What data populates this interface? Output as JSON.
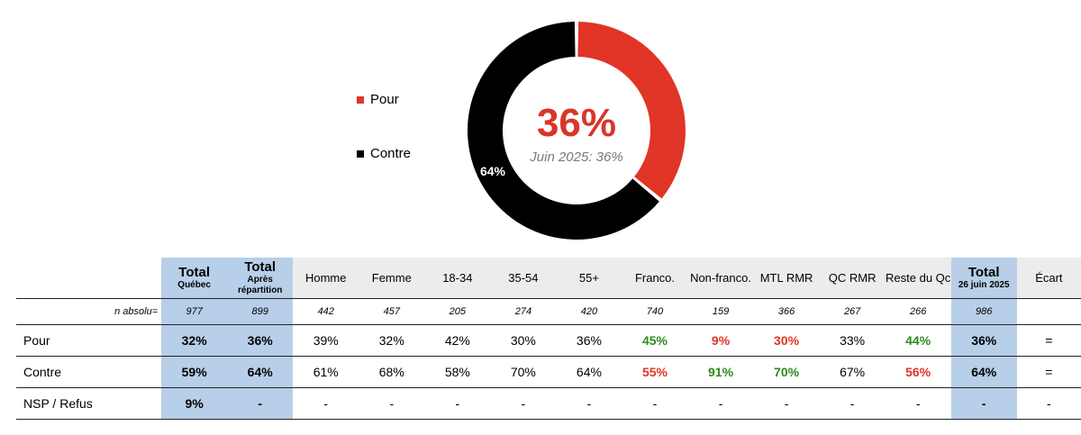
{
  "chart_data": {
    "type": "pie",
    "labels": [
      "Pour",
      "Contre"
    ],
    "values": [
      36,
      64
    ],
    "colors": [
      "#e03527",
      "#000000"
    ],
    "center_value": "36%",
    "center_subtitle": "Juin 2025: 36%",
    "slice_label_contre": "64%",
    "legend_position": "left"
  },
  "legend": {
    "pour": "Pour",
    "contre": "Contre"
  },
  "table": {
    "n_label": "n absolu=",
    "columns": [
      {
        "title": "Total",
        "sub": "Québec",
        "style": "total"
      },
      {
        "title": "Total",
        "sub": "Après répartition",
        "style": "total"
      },
      {
        "title": "Homme",
        "style": "plain"
      },
      {
        "title": "Femme",
        "style": "plain"
      },
      {
        "title": "18-34",
        "style": "plain"
      },
      {
        "title": "35-54",
        "style": "plain"
      },
      {
        "title": "55+",
        "style": "plain"
      },
      {
        "title": "Franco.",
        "style": "plain"
      },
      {
        "title": "Non-franco.",
        "style": "plain"
      },
      {
        "title": "MTL RMR",
        "style": "plain"
      },
      {
        "title": "QC RMR",
        "style": "plain"
      },
      {
        "title": "Reste du Qc",
        "style": "plain"
      },
      {
        "title": "Total",
        "sub": "26 juin 2025",
        "style": "total"
      },
      {
        "title": "Écart",
        "style": "plain"
      }
    ],
    "n_values": [
      "977",
      "899",
      "442",
      "457",
      "205",
      "274",
      "420",
      "740",
      "159",
      "366",
      "267",
      "266",
      "986",
      ""
    ],
    "rows": [
      {
        "label": "Pour",
        "values": [
          "32%",
          "36%",
          "39%",
          "32%",
          "42%",
          "30%",
          "36%",
          "45%",
          "9%",
          "30%",
          "33%",
          "44%",
          "36%",
          "="
        ],
        "colors": [
          "",
          "",
          "",
          "",
          "",
          "",
          "",
          "green",
          "red",
          "red",
          "",
          "green",
          "",
          ""
        ]
      },
      {
        "label": "Contre",
        "values": [
          "59%",
          "64%",
          "61%",
          "68%",
          "58%",
          "70%",
          "64%",
          "55%",
          "91%",
          "70%",
          "67%",
          "56%",
          "64%",
          "="
        ],
        "colors": [
          "",
          "",
          "",
          "",
          "",
          "",
          "",
          "red",
          "green",
          "green",
          "",
          "red",
          "",
          ""
        ]
      },
      {
        "label": "NSP / Refus",
        "values": [
          "9%",
          "-",
          "-",
          "-",
          "-",
          "-",
          "-",
          "-",
          "-",
          "-",
          "-",
          "-",
          "-",
          "-"
        ],
        "colors": [
          "",
          "",
          "",
          "",
          "",
          "",
          "",
          "",
          "",
          "",
          "",
          "",
          "",
          ""
        ]
      }
    ]
  }
}
